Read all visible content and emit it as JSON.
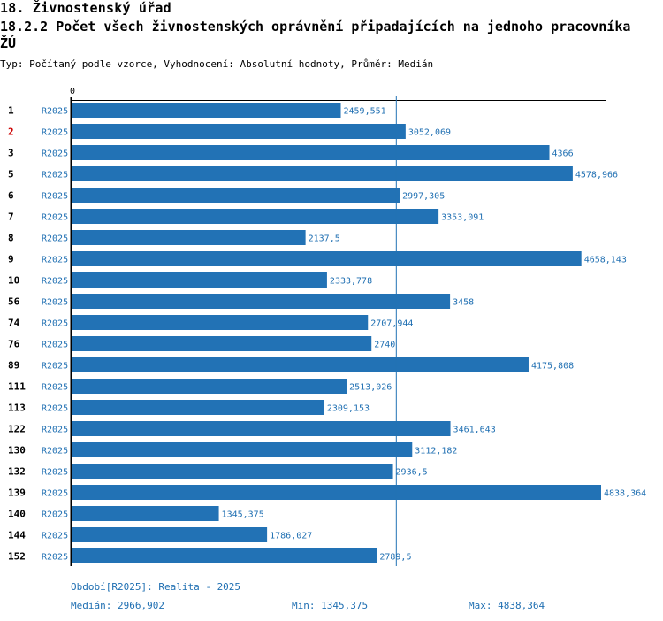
{
  "header": {
    "title": "18. Živnostenský úřad",
    "subtitle": "18.2.2 Počet všech živnostenských oprávnění připadajících na jednoho pracovníka ŽÚ",
    "meta": "Typ: Počítaný podle vzorce, Vyhodnocení: Absolutní hodnoty, Průměr: Medián"
  },
  "chart_data": {
    "type": "bar",
    "orientation": "horizontal",
    "axis_zero_label": "0",
    "xlim": [
      0,
      4838.364
    ],
    "median": 2966.902,
    "bar_color": "#2272b5",
    "label_color": "#1f6fb2",
    "highlight_color": "#cc0000",
    "categories": [
      "1",
      "2",
      "3",
      "5",
      "6",
      "7",
      "8",
      "9",
      "10",
      "56",
      "74",
      "76",
      "89",
      "111",
      "113",
      "122",
      "130",
      "132",
      "139",
      "140",
      "144",
      "152"
    ],
    "highlighted": [
      "2"
    ],
    "series_name": "R2025",
    "values": [
      2459.551,
      3052.069,
      4366,
      4578.966,
      2997.305,
      3353.091,
      2137.5,
      4658.143,
      2333.778,
      3458,
      2707.944,
      2740,
      4175.808,
      2513.026,
      2309.153,
      3461.643,
      3112.182,
      2936.5,
      4838.364,
      1345.375,
      1786.027,
      2789.5
    ],
    "value_labels": [
      "2459,551",
      "3052,069",
      "4366",
      "4578,966",
      "2997,305",
      "3353,091",
      "2137,5",
      "4658,143",
      "2333,778",
      "3458",
      "2707,944",
      "2740",
      "4175,808",
      "2513,026",
      "2309,153",
      "3461,643",
      "3112,182",
      "2936,5",
      "4838,364",
      "1345,375",
      "1786,027",
      "2789,5"
    ]
  },
  "footer": {
    "period": "Období[R2025]: Realita - 2025",
    "median": "Medián: 2966,902",
    "min": "Min: 1345,375",
    "max": "Max: 4838,364"
  }
}
